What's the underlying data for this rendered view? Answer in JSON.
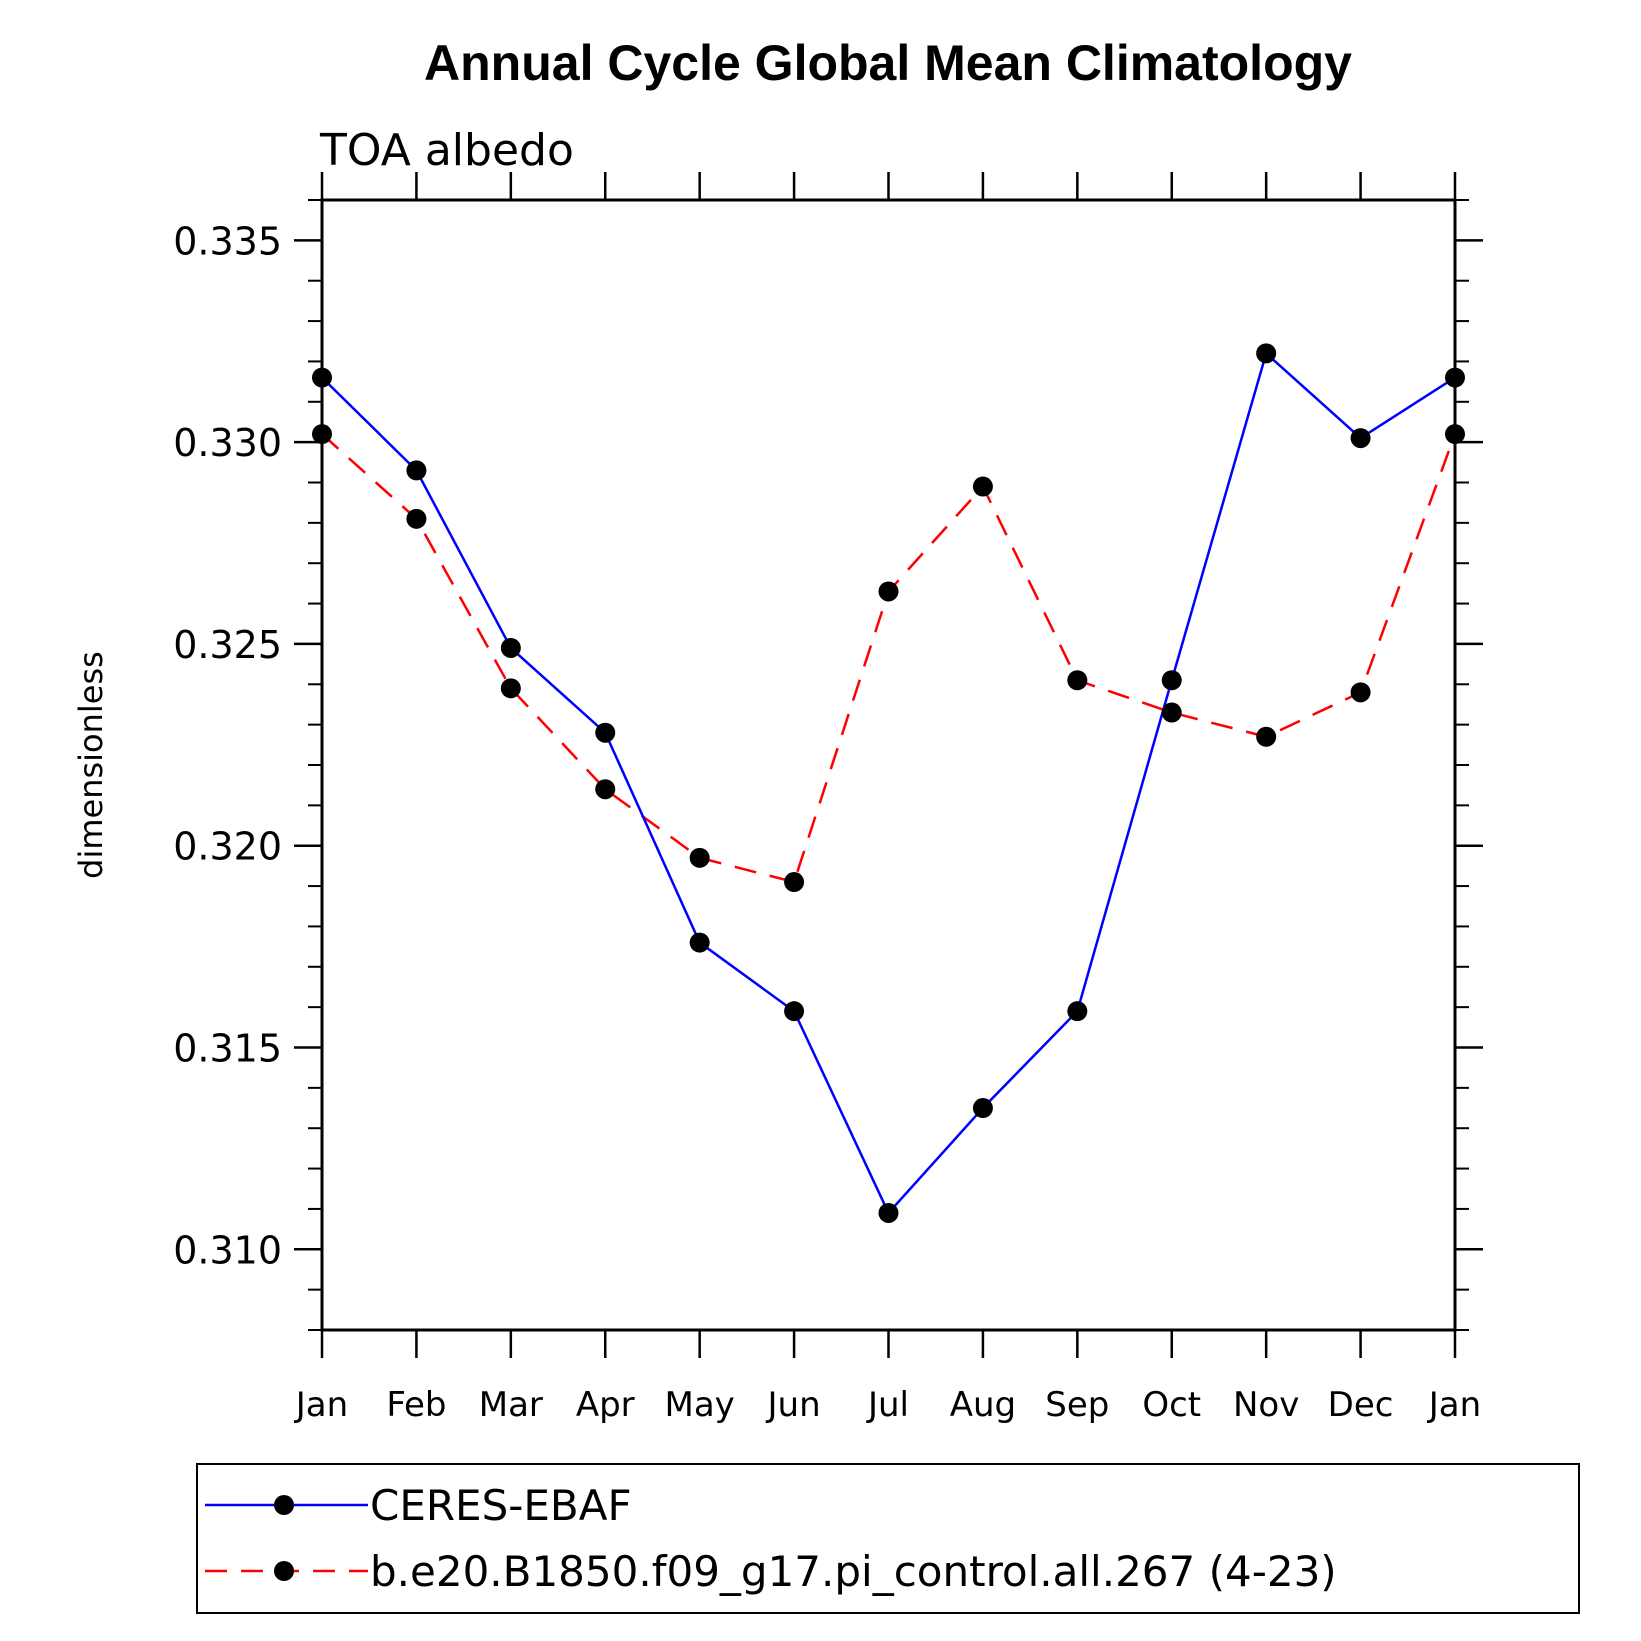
{
  "chart_data": {
    "type": "line",
    "title": "Annual Cycle Global Mean Climatology",
    "subtitle": "TOA albedo",
    "ylabel": "dimensionless",
    "xlabel": "",
    "categories": [
      "Jan",
      "Feb",
      "Mar",
      "Apr",
      "May",
      "Jun",
      "Jul",
      "Aug",
      "Sep",
      "Oct",
      "Nov",
      "Dec",
      "Jan"
    ],
    "ylim": [
      0.308,
      0.336
    ],
    "yticks": [
      "0.310",
      "0.315",
      "0.320",
      "0.325",
      "0.330",
      "0.335"
    ],
    "ytick_values": [
      0.31,
      0.315,
      0.32,
      0.325,
      0.33,
      0.335
    ],
    "grid": false,
    "legend_position": "bottom",
    "series": [
      {
        "name": "CERES-EBAF",
        "color": "#0000ff",
        "dash": "solid",
        "values": [
          0.3316,
          0.3293,
          0.3249,
          0.3228,
          0.3176,
          0.3159,
          0.3109,
          0.3135,
          0.3159,
          0.3241,
          0.3322,
          0.3301,
          0.3316
        ]
      },
      {
        "name": "b.e20.B1850.f09_g17.pi_control.all.267 (4-23)",
        "color": "#ff0000",
        "dash": "dashed",
        "values": [
          0.3302,
          0.3281,
          0.3239,
          0.3214,
          0.3197,
          0.3191,
          0.3263,
          0.3289,
          0.3241,
          0.3233,
          0.3227,
          0.3238,
          0.3302
        ]
      }
    ]
  }
}
